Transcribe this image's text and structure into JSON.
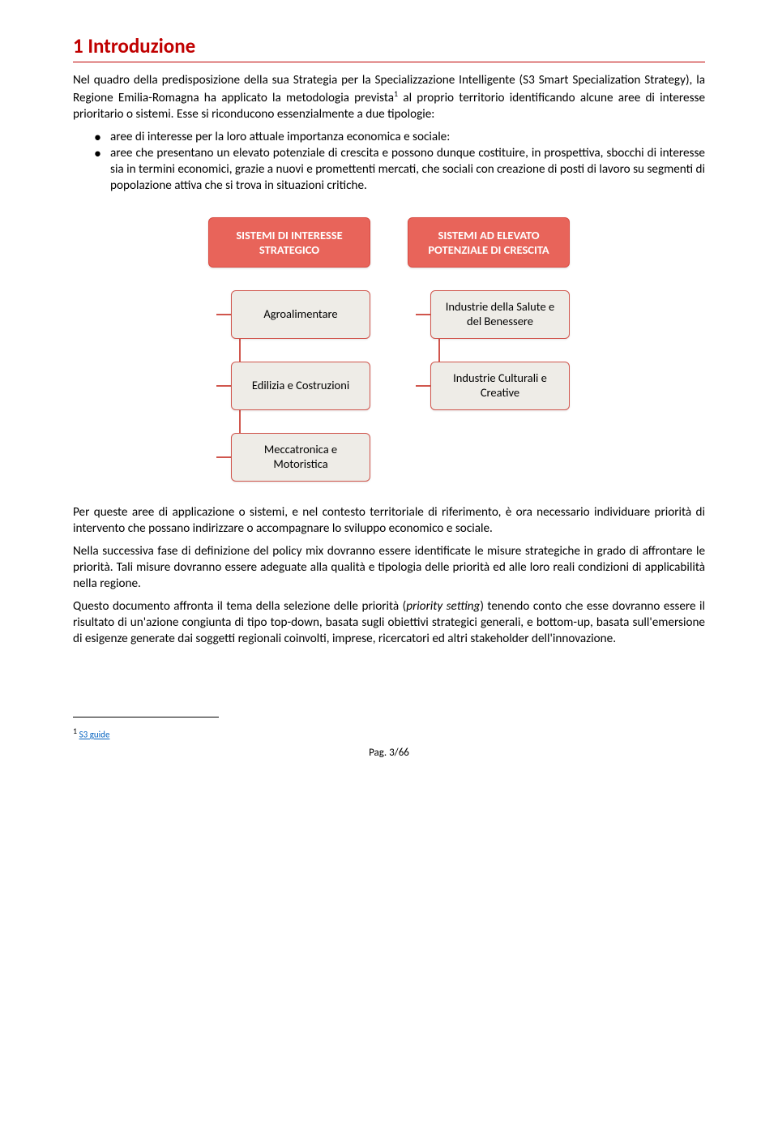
{
  "colors": {
    "heading": "#c00000",
    "heading_rule": "#c00000",
    "diagram_header_bg": "#e8645a",
    "diagram_header_border": "#d94c43",
    "diagram_child_bg": "#eeece7",
    "diagram_child_border": "#d0564d",
    "connector": "#d0564d",
    "link": "#0563c1"
  },
  "heading": "1  Introduzione",
  "para1": "Nel quadro della predisposizione della sua Strategia per la Specializzazione Intelligente (S3 Smart Specialization Strategy), la Regione Emilia-Romagna ha applicato la metodologia prevista",
  "para1_sup": "1",
  "para1b": " al proprio territorio identificando alcune aree di interesse prioritario o sistemi. Esse si riconducono essenzialmente a due tipologie:",
  "bullets": [
    "aree di interesse per la loro attuale importanza economica e sociale:",
    "aree che presentano un elevato potenziale di crescita e possono dunque costituire, in prospettiva, sbocchi di interesse sia in termini economici, grazie a nuovi e promettenti mercati, che sociali con creazione di posti di lavoro su segmenti di popolazione attiva che si trova in situazioni critiche."
  ],
  "diagram": {
    "left": {
      "header": "SISTEMI DI INTERESSE STRATEGICO",
      "children": [
        "Agroalimentare",
        "Edilizia e Costruzioni",
        "Meccatronica e Motoristica"
      ]
    },
    "right": {
      "header": "SISTEMI AD ELEVATO POTENZIALE DI CRESCITA",
      "children": [
        "Industrie della Salute e del Benessere",
        "Industrie Culturali e Creative"
      ]
    }
  },
  "para2": "Per queste aree di applicazione o sistemi, e nel contesto territoriale di riferimento, è ora necessario individuare priorità di intervento che possano indirizzare o accompagnare lo sviluppo economico e sociale.",
  "para3": "Nella successiva fase di definizione del policy mix dovranno essere identificate le misure strategiche in grado di affrontare le priorità. Tali misure dovranno essere adeguate alla qualità e tipologia delle priorità ed alle loro reali condizioni di applicabilità nella regione.",
  "para4a": "Questo documento affronta il tema della selezione delle priorità (",
  "para4_italic": "priority setting",
  "para4b": ") tenendo conto che esse dovranno essere il risultato di un'azione congiunta di tipo top-down, basata sugli obiettivi strategici generali, e bottom-up, basata sull'emersione di esigenze generate dai soggetti regionali coinvolti, imprese, ricercatori ed altri stakeholder dell'innovazione.",
  "footnote": {
    "marker": "1",
    "text": "S3 guide"
  },
  "pager": "Pag. 3/66"
}
